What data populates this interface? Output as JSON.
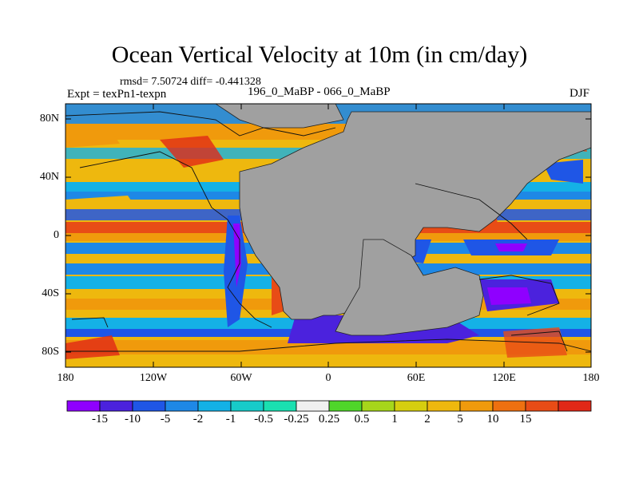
{
  "title": "Ocean Vertical Velocity at 10m (in cm/day)",
  "stats": "rmsd= 7.50724  diff= -0.441328",
  "expt": "Expt = texPn1-texpn",
  "case": "196_0_MaBP - 066_0_MaBP",
  "season": "DJF",
  "lat_labels": [
    "80N",
    "40N",
    "0",
    "40S",
    "80S"
  ],
  "lon_labels": [
    "180",
    "120W",
    "60W",
    "0",
    "60E",
    "120E",
    "180"
  ],
  "colorbar": {
    "colors": [
      "#8f00ff",
      "#4b22dd",
      "#1f56e6",
      "#1e88e6",
      "#14b1e6",
      "#17cbc9",
      "#1ae0b0",
      "#f0f0f0",
      "#4fd62a",
      "#a6d61b",
      "#d6ce0f",
      "#eeb80e",
      "#f09a0c",
      "#ee7010",
      "#e84c16",
      "#e12817"
    ],
    "labels": [
      "-15",
      "-10",
      "-5",
      "-2",
      "-1",
      "-0.5",
      "-0.25",
      "0.25",
      "0.5",
      "1",
      "2",
      "5",
      "10",
      "15"
    ]
  },
  "land_color": "#a0a0a0"
}
